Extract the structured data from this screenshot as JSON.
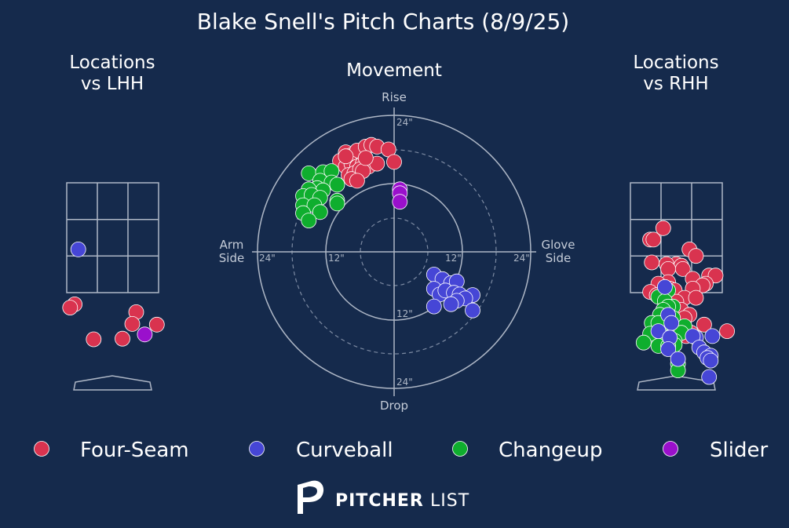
{
  "chart_data": {
    "type": "scatter",
    "title": "Blake Snell's Pitch Charts (8/9/25)",
    "colors": {
      "background": "#152a4c",
      "Four-Seam": "#d9334f",
      "Curveball": "#4646d6",
      "Changeup": "#0fae2e",
      "Slider": "#9a10cc"
    },
    "legend": {
      "placement": "bottom",
      "items": [
        "Four-Seam",
        "Curveball",
        "Changeup",
        "Slider"
      ]
    },
    "panels": {
      "lhh": {
        "title_line1": "Locations",
        "title_line2": "vs LHH",
        "points": [
          {
            "pitch": "Curveball",
            "x": -1.05,
            "y": 4.2
          },
          {
            "pitch": "Four-Seam",
            "x": -1.16,
            "y": 2.52
          },
          {
            "pitch": "Four-Seam",
            "x": -1.3,
            "y": 2.42
          },
          {
            "pitch": "Four-Seam",
            "x": 0.72,
            "y": 2.28
          },
          {
            "pitch": "Four-Seam",
            "x": 0.6,
            "y": 1.92
          },
          {
            "pitch": "Four-Seam",
            "x": 1.35,
            "y": 1.9
          },
          {
            "pitch": "Slider",
            "x": 0.98,
            "y": 1.6
          },
          {
            "pitch": "Four-Seam",
            "x": -0.58,
            "y": 1.45
          },
          {
            "pitch": "Four-Seam",
            "x": 0.3,
            "y": 1.47
          }
        ]
      },
      "movement": {
        "title": "Movement",
        "top_label": "Rise",
        "bottom_label": "Drop",
        "left_label_line1": "Arm",
        "left_label_line2": "Side",
        "right_label_line1": "Glove",
        "right_label_line2": "Side",
        "ring_labels": {
          "inner": "12\"",
          "outer": "24\""
        },
        "points": [
          {
            "pitch": "Four-Seam",
            "x": -9.5,
            "y": 16
          },
          {
            "pitch": "Four-Seam",
            "x": -8.5,
            "y": 17.5
          },
          {
            "pitch": "Four-Seam",
            "x": -7.5,
            "y": 17
          },
          {
            "pitch": "Four-Seam",
            "x": -6.5,
            "y": 17.8
          },
          {
            "pitch": "Four-Seam",
            "x": -5,
            "y": 18.5
          },
          {
            "pitch": "Four-Seam",
            "x": -4,
            "y": 18.8
          },
          {
            "pitch": "Four-Seam",
            "x": -3,
            "y": 18.5
          },
          {
            "pitch": "Four-Seam",
            "x": -1,
            "y": 18
          },
          {
            "pitch": "Four-Seam",
            "x": -8.5,
            "y": 15
          },
          {
            "pitch": "Four-Seam",
            "x": -7.5,
            "y": 15.5
          },
          {
            "pitch": "Four-Seam",
            "x": -6.5,
            "y": 15
          },
          {
            "pitch": "Four-Seam",
            "x": -5.5,
            "y": 15.5
          },
          {
            "pitch": "Four-Seam",
            "x": -4.5,
            "y": 15
          },
          {
            "pitch": "Four-Seam",
            "x": -3,
            "y": 15.5
          },
          {
            "pitch": "Four-Seam",
            "x": -8,
            "y": 13.5
          },
          {
            "pitch": "Four-Seam",
            "x": -7,
            "y": 13.8
          },
          {
            "pitch": "Four-Seam",
            "x": -6,
            "y": 14.5
          },
          {
            "pitch": "Four-Seam",
            "x": -5.5,
            "y": 14.2
          },
          {
            "pitch": "Four-Seam",
            "x": -7.5,
            "y": 12.8
          },
          {
            "pitch": "Four-Seam",
            "x": -6.5,
            "y": 12.5
          },
          {
            "pitch": "Four-Seam",
            "x": -8.5,
            "y": 16.8
          },
          {
            "pitch": "Four-Seam",
            "x": -5,
            "y": 16.5
          },
          {
            "pitch": "Four-Seam",
            "x": 0,
            "y": 15.8
          },
          {
            "pitch": "Changeup",
            "x": -15,
            "y": 13.8
          },
          {
            "pitch": "Changeup",
            "x": -12.5,
            "y": 14
          },
          {
            "pitch": "Changeup",
            "x": -11,
            "y": 14.2
          },
          {
            "pitch": "Changeup",
            "x": -13,
            "y": 12.5
          },
          {
            "pitch": "Changeup",
            "x": -11,
            "y": 12.2
          },
          {
            "pitch": "Changeup",
            "x": -10,
            "y": 11.8
          },
          {
            "pitch": "Changeup",
            "x": -13.5,
            "y": 11.2
          },
          {
            "pitch": "Changeup",
            "x": -12.5,
            "y": 10.8
          },
          {
            "pitch": "Changeup",
            "x": -15,
            "y": 11
          },
          {
            "pitch": "Changeup",
            "x": -16,
            "y": 9.8
          },
          {
            "pitch": "Changeup",
            "x": -14.5,
            "y": 10
          },
          {
            "pitch": "Changeup",
            "x": -13,
            "y": 9.5
          },
          {
            "pitch": "Changeup",
            "x": -10,
            "y": 9
          },
          {
            "pitch": "Changeup",
            "x": -16,
            "y": 8.2
          },
          {
            "pitch": "Changeup",
            "x": -14,
            "y": 8.2
          },
          {
            "pitch": "Changeup",
            "x": -10,
            "y": 8.5
          },
          {
            "pitch": "Changeup",
            "x": -16,
            "y": 6.8
          },
          {
            "pitch": "Changeup",
            "x": -13,
            "y": 7
          },
          {
            "pitch": "Changeup",
            "x": -15,
            "y": 5.5
          },
          {
            "pitch": "Slider",
            "x": 1,
            "y": 11
          },
          {
            "pitch": "Slider",
            "x": 1,
            "y": 10.3
          },
          {
            "pitch": "Slider",
            "x": 1,
            "y": 8.8
          },
          {
            "pitch": "Curveball",
            "x": 7,
            "y": -4
          },
          {
            "pitch": "Curveball",
            "x": 8.5,
            "y": -4.8
          },
          {
            "pitch": "Curveball",
            "x": 10,
            "y": -5.5
          },
          {
            "pitch": "Curveball",
            "x": 11,
            "y": -5.2
          },
          {
            "pitch": "Curveball",
            "x": 7,
            "y": -6.5
          },
          {
            "pitch": "Curveball",
            "x": 8,
            "y": -7.5
          },
          {
            "pitch": "Curveball",
            "x": 9,
            "y": -6.8
          },
          {
            "pitch": "Curveball",
            "x": 10.5,
            "y": -7.2
          },
          {
            "pitch": "Curveball",
            "x": 11.5,
            "y": -7.5
          },
          {
            "pitch": "Curveball",
            "x": 13.8,
            "y": -7.6
          },
          {
            "pitch": "Curveball",
            "x": 12.5,
            "y": -8.2
          },
          {
            "pitch": "Curveball",
            "x": 11,
            "y": -8.6
          },
          {
            "pitch": "Curveball",
            "x": 10,
            "y": -9.2
          },
          {
            "pitch": "Curveball",
            "x": 7,
            "y": -9.6
          },
          {
            "pitch": "Curveball",
            "x": 13.8,
            "y": -10.3
          }
        ]
      },
      "rhh": {
        "title_line1": "Locations",
        "title_line2": "vs RHH",
        "points": [
          {
            "pitch": "Four-Seam",
            "x": -0.4,
            "y": 4.85
          },
          {
            "pitch": "Four-Seam",
            "x": -0.8,
            "y": 4.5
          },
          {
            "pitch": "Four-Seam",
            "x": -0.7,
            "y": 4.5
          },
          {
            "pitch": "Four-Seam",
            "x": 0.4,
            "y": 4.2
          },
          {
            "pitch": "Four-Seam",
            "x": 0.6,
            "y": 4.0
          },
          {
            "pitch": "Four-Seam",
            "x": 0.0,
            "y": 3.75
          },
          {
            "pitch": "Four-Seam",
            "x": -0.75,
            "y": 3.8
          },
          {
            "pitch": "Four-Seam",
            "x": 0.15,
            "y": 3.7
          },
          {
            "pitch": "Four-Seam",
            "x": -0.3,
            "y": 3.75
          },
          {
            "pitch": "Four-Seam",
            "x": -0.25,
            "y": 3.6
          },
          {
            "pitch": "Four-Seam",
            "x": 0.2,
            "y": 3.6
          },
          {
            "pitch": "Four-Seam",
            "x": 1.0,
            "y": 3.4
          },
          {
            "pitch": "Four-Seam",
            "x": 1.2,
            "y": 3.4
          },
          {
            "pitch": "Four-Seam",
            "x": 0.5,
            "y": 3.3
          },
          {
            "pitch": "Four-Seam",
            "x": 0.9,
            "y": 3.15
          },
          {
            "pitch": "Four-Seam",
            "x": -0.25,
            "y": 3.2
          },
          {
            "pitch": "Four-Seam",
            "x": -0.55,
            "y": 3.15
          },
          {
            "pitch": "Four-Seam",
            "x": 0.8,
            "y": 3.1
          },
          {
            "pitch": "Four-Seam",
            "x": -0.2,
            "y": 3.0
          },
          {
            "pitch": "Four-Seam",
            "x": 0.5,
            "y": 3.0
          },
          {
            "pitch": "Four-Seam",
            "x": -0.05,
            "y": 2.95
          },
          {
            "pitch": "Four-Seam",
            "x": -0.8,
            "y": 2.9
          },
          {
            "pitch": "Four-Seam",
            "x": -0.6,
            "y": 2.8
          },
          {
            "pitch": "Four-Seam",
            "x": 0.25,
            "y": 2.72
          },
          {
            "pitch": "Four-Seam",
            "x": 0.6,
            "y": 2.72
          },
          {
            "pitch": "Four-Seam",
            "x": 0.0,
            "y": 2.6
          },
          {
            "pitch": "Four-Seam",
            "x": 0.15,
            "y": 2.35
          },
          {
            "pitch": "Four-Seam",
            "x": 0.4,
            "y": 2.2
          },
          {
            "pitch": "Four-Seam",
            "x": 0.25,
            "y": 2.1
          },
          {
            "pitch": "Four-Seam",
            "x": 0.85,
            "y": 1.9
          },
          {
            "pitch": "Four-Seam",
            "x": 0.45,
            "y": 1.65
          },
          {
            "pitch": "Four-Seam",
            "x": 1.55,
            "y": 1.7
          },
          {
            "pitch": "Four-Seam",
            "x": 0.3,
            "y": 1.55
          },
          {
            "pitch": "Changeup",
            "x": -0.25,
            "y": 2.95
          },
          {
            "pitch": "Changeup",
            "x": -0.55,
            "y": 2.75
          },
          {
            "pitch": "Changeup",
            "x": -0.35,
            "y": 2.62
          },
          {
            "pitch": "Changeup",
            "x": -0.1,
            "y": 2.45
          },
          {
            "pitch": "Changeup",
            "x": -0.25,
            "y": 2.45
          },
          {
            "pitch": "Changeup",
            "x": -0.4,
            "y": 2.35
          },
          {
            "pitch": "Changeup",
            "x": -0.5,
            "y": 2.2
          },
          {
            "pitch": "Changeup",
            "x": -0.1,
            "y": 2.1
          },
          {
            "pitch": "Changeup",
            "x": -0.75,
            "y": 1.95
          },
          {
            "pitch": "Changeup",
            "x": -0.5,
            "y": 1.8
          },
          {
            "pitch": "Changeup",
            "x": -0.55,
            "y": 1.95
          },
          {
            "pitch": "Changeup",
            "x": 0.25,
            "y": 1.85
          },
          {
            "pitch": "Changeup",
            "x": 0.15,
            "y": 1.65
          },
          {
            "pitch": "Changeup",
            "x": -0.8,
            "y": 1.62
          },
          {
            "pitch": "Changeup",
            "x": -0.3,
            "y": 1.5
          },
          {
            "pitch": "Changeup",
            "x": -0.05,
            "y": 1.4
          },
          {
            "pitch": "Changeup",
            "x": -0.25,
            "y": 1.32
          },
          {
            "pitch": "Changeup",
            "x": -0.05,
            "y": 1.28
          },
          {
            "pitch": "Changeup",
            "x": -0.45,
            "y": 1.3
          },
          {
            "pitch": "Changeup",
            "x": -0.55,
            "y": 1.25
          },
          {
            "pitch": "Changeup",
            "x": -0.25,
            "y": 1.25
          },
          {
            "pitch": "Changeup",
            "x": -1.0,
            "y": 1.35
          },
          {
            "pitch": "Changeup",
            "x": 0.05,
            "y": 0.7
          },
          {
            "pitch": "Changeup",
            "x": 0.05,
            "y": 0.5
          },
          {
            "pitch": "Curveball",
            "x": -0.35,
            "y": 3.05
          },
          {
            "pitch": "Curveball",
            "x": -0.25,
            "y": 2.2
          },
          {
            "pitch": "Curveball",
            "x": -0.15,
            "y": 1.95
          },
          {
            "pitch": "Curveball",
            "x": -0.55,
            "y": 1.7
          },
          {
            "pitch": "Curveball",
            "x": -0.2,
            "y": 1.5
          },
          {
            "pitch": "Curveball",
            "x": 0.6,
            "y": 1.5
          },
          {
            "pitch": "Curveball",
            "x": 0.5,
            "y": 1.55
          },
          {
            "pitch": "Curveball",
            "x": 1.1,
            "y": 1.55
          },
          {
            "pitch": "Curveball",
            "x": -0.25,
            "y": 1.15
          },
          {
            "pitch": "Curveball",
            "x": 0.7,
            "y": 1.2
          },
          {
            "pitch": "Curveball",
            "x": 0.85,
            "y": 1.05
          },
          {
            "pitch": "Curveball",
            "x": 1.05,
            "y": 0.95
          },
          {
            "pitch": "Curveball",
            "x": 0.95,
            "y": 0.88
          },
          {
            "pitch": "Curveball",
            "x": 1.05,
            "y": 0.8
          },
          {
            "pitch": "Curveball",
            "x": 0.05,
            "y": 0.85
          },
          {
            "pitch": "Curveball",
            "x": 1.0,
            "y": 0.3
          }
        ]
      }
    }
  },
  "footer": {
    "brand_bold": "PITCHER",
    "brand_light": "LIST"
  }
}
